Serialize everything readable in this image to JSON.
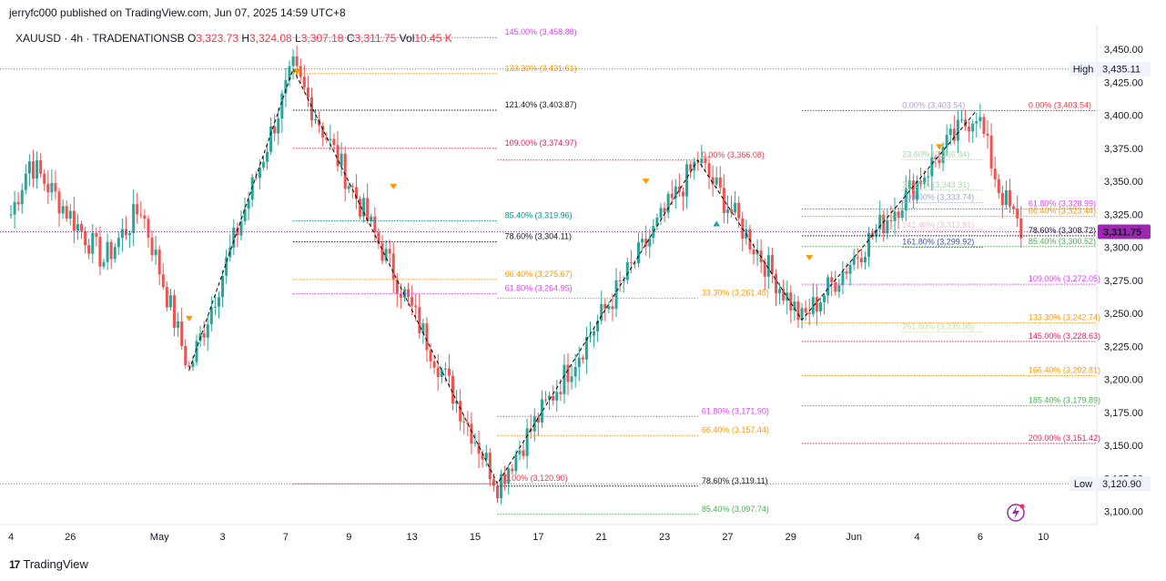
{
  "header": {
    "publisher": "jerryfc000 published on TradingView.com, Jun 07, 2025 14:59 UTC+8"
  },
  "legend": {
    "symbol": "XAUUSD · 4h · TRADENATIONSB",
    "o_label": "O",
    "o": "3,323.73",
    "h_label": "H",
    "h": "3,324.08",
    "l_label": "L",
    "l": "3,307.18",
    "c_label": "C",
    "c": "3,311.75",
    "vol_label": "Vol",
    "vol": "10.45 K"
  },
  "footer": {
    "brand": "TradingView",
    "logo": "17"
  },
  "colors": {
    "up": "#26a69a",
    "down": "#ef5350",
    "price_badge": "#9c27b0",
    "dotted_line": "#787b86",
    "zigzag": "#000000"
  },
  "chart_data": {
    "type": "candlestick",
    "symbol": "XAUUSD",
    "timeframe": "4h",
    "broker": "TRADENATIONSB",
    "ylim": [
      3090,
      3468
    ],
    "y_ticks": [
      "3,450.00",
      "3,425.00",
      "3,400.00",
      "3,375.00",
      "3,350.00",
      "3,325.00",
      "3,300.00",
      "3,275.00",
      "3,250.00",
      "3,225.00",
      "3,200.00",
      "3,175.00",
      "3,150.00",
      "3,125.00",
      "3,100.00"
    ],
    "y_tick_values": [
      3450,
      3425,
      3400,
      3375,
      3350,
      3325,
      3300,
      3275,
      3250,
      3225,
      3200,
      3175,
      3150,
      3125,
      3100
    ],
    "x_ticks": [
      "4",
      "26",
      "May",
      "3",
      "7",
      "9",
      "13",
      "15",
      "17",
      "21",
      "23",
      "27",
      "29",
      "Jun",
      "4",
      "6",
      "10"
    ],
    "x_tick_bars": [
      0,
      16,
      40,
      57,
      74,
      91,
      108,
      125,
      142,
      159,
      176,
      193,
      210,
      227,
      244,
      261,
      278
    ],
    "price_lines": [
      {
        "label": "High",
        "value": "3,435.11",
        "price": 3435.11
      },
      {
        "label": "Low",
        "value": "3,120.90",
        "price": 3120.9
      },
      {
        "label": "",
        "value": "3,311.75",
        "price": 3311.75
      }
    ],
    "zigzag": [
      {
        "bar": 48,
        "price": 3207
      },
      {
        "bar": 76,
        "price": 3435.11
      },
      {
        "bar": 131,
        "price": 3120.9
      },
      {
        "bar": 185,
        "price": 3366.08
      },
      {
        "bar": 213,
        "price": 3245
      },
      {
        "bar": 260,
        "price": 3403.54
      }
    ],
    "fib_groups": [
      {
        "x0": 76,
        "x1": 131,
        "color": "#000000",
        "label_x": 133,
        "levels": [
          {
            "text": "145.00% (3,458.88)",
            "price": 3458.88,
            "color": "#e040fb"
          },
          {
            "text": "133.30% (3,431.61)",
            "price": 3431.61,
            "color": "#ff9800"
          },
          {
            "text": "121.40% (3,403.87)",
            "price": 3403.87,
            "color": "#131722"
          },
          {
            "text": "109.00% (3,374.97)",
            "price": 3374.97,
            "color": "#e91e63"
          },
          {
            "text": "85.40% (3,319.96)",
            "price": 3319.96,
            "color": "#009688"
          },
          {
            "text": "78.60% (3,304.11)",
            "price": 3304.11,
            "color": "#131722"
          },
          {
            "text": "66.40% (3,275.67)",
            "price": 3275.67,
            "color": "#ff9800"
          },
          {
            "text": "61.80% (3,264.95)",
            "price": 3264.95,
            "color": "#e040fb"
          },
          {
            "text": "0.00% (3,120.90)",
            "price": 3120.9,
            "color": "#f23645"
          }
        ]
      },
      {
        "x0": 131,
        "x1": 185,
        "color": "#000000",
        "label_x": 186,
        "levels": [
          {
            "text": "0.00% (3,366.08)",
            "price": 3366.08,
            "color": "#f23645"
          },
          {
            "text": "33.30% (3,261.45)",
            "price": 3261.45,
            "color": "#ff9800"
          },
          {
            "text": "61.80% (3,171.90)",
            "price": 3171.9,
            "color": "#e040fb"
          },
          {
            "text": "66.40% (3,157.44)",
            "price": 3157.44,
            "color": "#ff9800"
          },
          {
            "text": "78.60% (3,119.11)",
            "price": 3119.11,
            "color": "#131722"
          },
          {
            "text": "85.40% (3,097.74)",
            "price": 3097.74,
            "color": "#4caf50"
          }
        ]
      },
      {
        "x0": 213,
        "x1": 292,
        "color": "#000000",
        "label_x": 274,
        "levels": [
          {
            "text": "0.00% (3,403.54)",
            "price": 3403.54,
            "color": "#f23645"
          },
          {
            "text": "61.80% (3,328.99)",
            "price": 3328.99,
            "color": "#e040fb"
          },
          {
            "text": "66.40% (3,323.44)",
            "price": 3323.44,
            "color": "#ff9800"
          },
          {
            "text": "78.60% (3,308.72)",
            "price": 3308.72,
            "color": "#131722"
          },
          {
            "text": "85.40% (3,300.52)",
            "price": 3300.52,
            "color": "#4caf50"
          },
          {
            "text": "109.00% (3,272.05)",
            "price": 3272.05,
            "color": "#e040fb"
          },
          {
            "text": "133.30% (3,242.74)",
            "price": 3242.74,
            "color": "#ff9800"
          },
          {
            "text": "145.00% (3,228.63)",
            "price": 3228.63,
            "color": "#e91e63"
          },
          {
            "text": "166.40% (3,202.81)",
            "price": 3202.81,
            "color": "#ff9800"
          },
          {
            "text": "185.40% (3,179.89)",
            "price": 3179.89,
            "color": "#4caf50"
          },
          {
            "text": "209.00% (3,151.42)",
            "price": 3151.42,
            "color": "#e91e63"
          }
        ]
      },
      {
        "x0": 240,
        "x1": 262,
        "color": "#b2b5be",
        "label_x": 240,
        "levels": [
          {
            "text": "0.00% (3,403.54)",
            "price": 3403.54,
            "color": "#b39ddb"
          },
          {
            "text": "23.60% (3,366.34)",
            "price": 3366.34,
            "color": "#a5d6a7"
          },
          {
            "text": "38.20% (3,343.31)",
            "price": 3343.31,
            "color": "#a5d6a7"
          },
          {
            "text": "109.00% (3,333.74)",
            "price": 3333.74,
            "color": "#9fa8da"
          },
          {
            "text": "141.40% (3,312.91)",
            "price": 3312.91,
            "color": "#f8bbd0"
          },
          {
            "text": "161.80% (3,299.92)",
            "price": 3299.92,
            "color": "#3f51b5"
          },
          {
            "text": "261.80% (3,235.98)",
            "price": 3235.98,
            "color": "#c5e1a5"
          }
        ]
      }
    ],
    "markers": [
      {
        "bar": 48,
        "price": 3246,
        "type": "down"
      },
      {
        "bar": 77,
        "price": 3433,
        "type": "down"
      },
      {
        "bar": 103,
        "price": 3346,
        "type": "down"
      },
      {
        "bar": 171,
        "price": 3350,
        "type": "down"
      },
      {
        "bar": 190,
        "price": 3318,
        "type": "up"
      },
      {
        "bar": 215,
        "price": 3292,
        "type": "down"
      },
      {
        "bar": 250,
        "price": 3376,
        "type": "down"
      }
    ]
  }
}
